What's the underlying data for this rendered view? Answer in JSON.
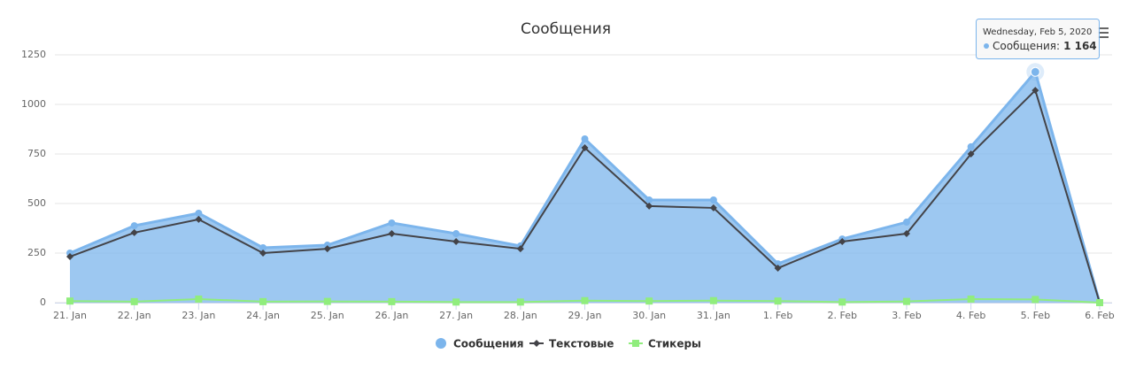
{
  "chart_data": {
    "type": "area",
    "title": "Сообщения",
    "categories": [
      "21. Jan",
      "22. Jan",
      "23. Jan",
      "24. Jan",
      "25. Jan",
      "26. Jan",
      "27. Jan",
      "28. Jan",
      "29. Jan",
      "30. Jan",
      "31. Jan",
      "1. Feb",
      "2. Feb",
      "3. Feb",
      "4. Feb",
      "5. Feb",
      "6. Feb"
    ],
    "series": [
      {
        "name": "Сообщения",
        "color": "#7cb5ec",
        "type": "area",
        "marker": "circle",
        "values": [
          250,
          388,
          451,
          277,
          290,
          402,
          348,
          286,
          826,
          518,
          518,
          196,
          321,
          406,
          786,
          1164,
          0
        ]
      },
      {
        "name": "Текстовые",
        "color": "#434348",
        "type": "line",
        "marker": "diamond",
        "values": [
          232,
          353,
          420,
          250,
          272,
          348,
          308,
          272,
          781,
          487,
          478,
          174,
          308,
          348,
          750,
          1071,
          0
        ]
      },
      {
        "name": "Стикеры",
        "color": "#90ed7d",
        "type": "line",
        "marker": "square",
        "values": [
          8,
          5,
          18,
          5,
          6,
          5,
          3,
          3,
          10,
          8,
          10,
          8,
          3,
          6,
          18,
          16,
          0
        ]
      }
    ],
    "ylim": [
      0,
      1250
    ],
    "yticks": [
      0,
      250,
      500,
      750,
      1000,
      1250
    ],
    "grid": true,
    "legend": "bottom",
    "tooltip": {
      "header": "Wednesday, Feb 5, 2020",
      "label": "Сообщения:",
      "series": 0,
      "index": 15,
      "value": {
        "value": 1164,
        "label": "1 164"
      }
    }
  }
}
